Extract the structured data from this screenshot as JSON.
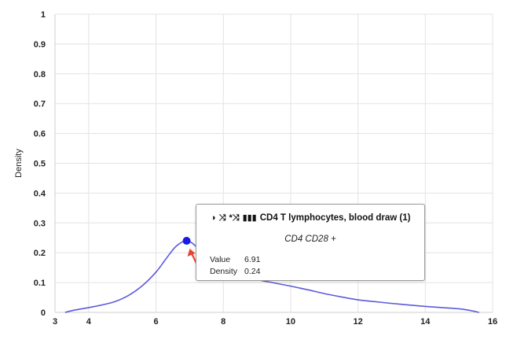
{
  "chart_data": {
    "type": "line",
    "xlabel": "",
    "ylabel": "Density",
    "xlim": [
      3,
      16
    ],
    "ylim": [
      0,
      1
    ],
    "x_ticks": [
      "3",
      "4",
      "6",
      "8",
      "10",
      "12",
      "14",
      "16"
    ],
    "y_ticks": [
      "0",
      "0.1",
      "0.2",
      "0.3",
      "0.4",
      "0.5",
      "0.6",
      "0.7",
      "0.8",
      "0.9",
      "1"
    ],
    "grid": true,
    "line_color": "#5b5bdc",
    "series": [
      {
        "x": [
          3.3,
          3.6,
          4.0,
          4.4,
          4.8,
          5.2,
          5.6,
          6.0,
          6.3,
          6.6,
          6.91,
          7.2,
          7.6,
          8.0,
          8.5,
          9.0,
          9.5,
          10.0,
          10.5,
          11.0,
          11.5,
          12.0,
          12.5,
          13.0,
          13.5,
          14.0,
          14.5,
          15.0,
          15.3,
          15.6
        ],
        "y": [
          0.0,
          0.008,
          0.016,
          0.025,
          0.037,
          0.058,
          0.09,
          0.135,
          0.18,
          0.222,
          0.24,
          0.22,
          0.17,
          0.14,
          0.124,
          0.11,
          0.099,
          0.088,
          0.076,
          0.063,
          0.052,
          0.042,
          0.036,
          0.03,
          0.025,
          0.02,
          0.016,
          0.012,
          0.007,
          0.0
        ]
      }
    ],
    "highlight": {
      "x": 6.91,
      "y": 0.24,
      "point_color": "#1a1ae6",
      "arrow_color": "#e8452c"
    }
  },
  "tooltip": {
    "icons": [
      "half-circle-icon",
      "shuffle-icon",
      "shuffle-plus-icon",
      "barcode-icon"
    ],
    "icon_glyphs": [
      "◑",
      "⤨",
      "*⤨",
      "▮▮▮"
    ],
    "title": "CD4 T lymphocytes, blood draw (1)",
    "subtitle": "CD4 CD28 +",
    "value_label": "Value",
    "value": "6.91",
    "density_label": "Density",
    "density": "0.24"
  }
}
